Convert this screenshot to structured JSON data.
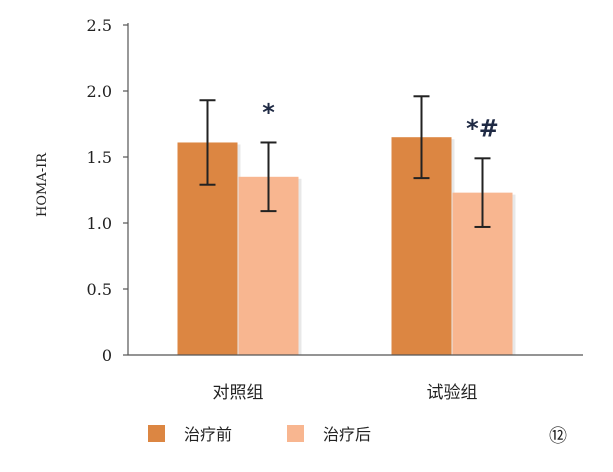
{
  "chart_data": {
    "type": "bar",
    "title": "",
    "xlabel": "",
    "ylabel": "HOMA-IR",
    "ylim": [
      0,
      2.5
    ],
    "yticks": [
      "0",
      "0.5",
      "1.0",
      "1.5",
      "2.0",
      "2.5"
    ],
    "grid": false,
    "legend_position": "bottom",
    "categories": [
      "对照组",
      "试验组"
    ],
    "series": [
      {
        "name": "治疗前",
        "color": "#DC8642",
        "values": [
          1.61,
          1.65
        ],
        "errors": [
          0.32,
          0.31
        ]
      },
      {
        "name": "治疗后",
        "color": "#F8B690",
        "values": [
          1.35,
          1.23
        ],
        "errors": [
          0.26,
          0.26
        ]
      }
    ],
    "annotations": [
      {
        "category": "对照组",
        "series": "治疗后",
        "text": "*"
      },
      {
        "category": "试验组",
        "series": "治疗后",
        "text": "*#"
      }
    ],
    "panel_label": "⑫"
  }
}
